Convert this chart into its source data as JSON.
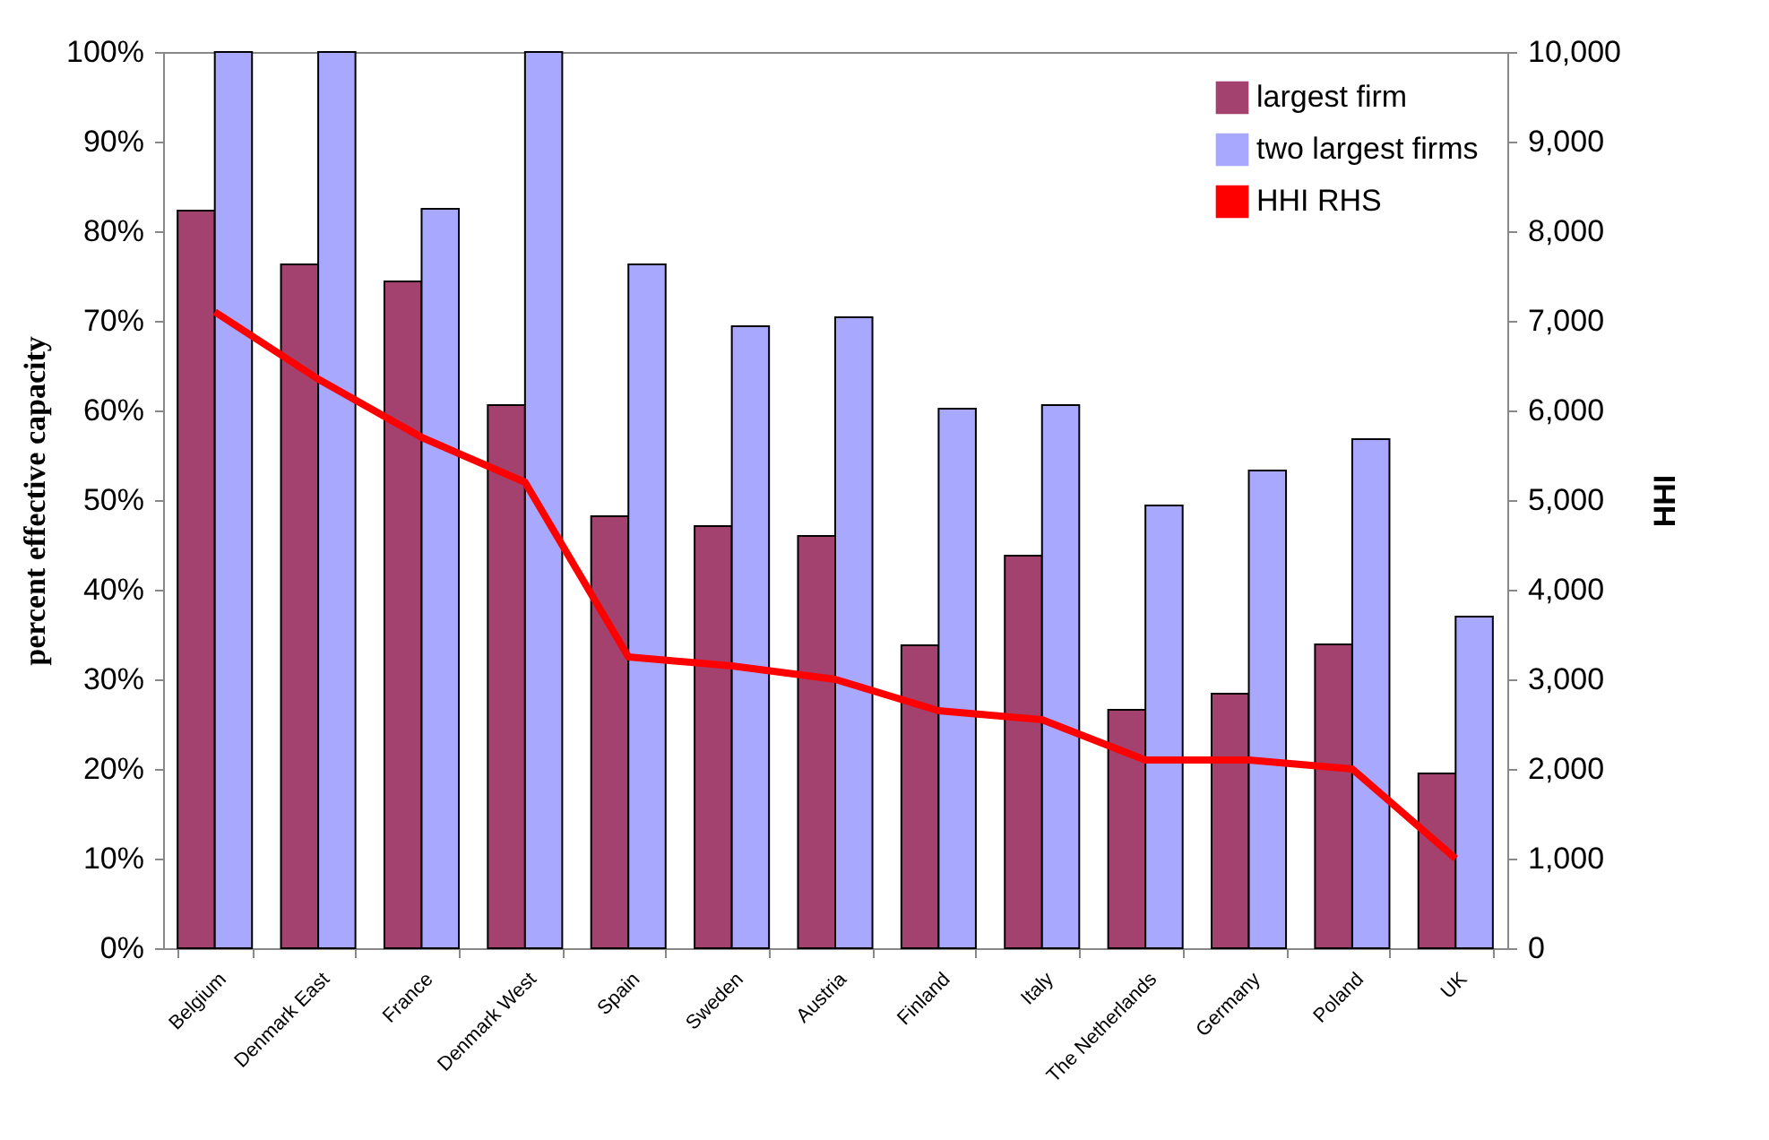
{
  "chart_data": {
    "type": "bar",
    "ylabel": "percent effective capacity",
    "y2label": "HHI",
    "categories": [
      "Belgium",
      "Denmark East",
      "France",
      "Denmark West",
      "Spain",
      "Sweden",
      "Austria",
      "Finland",
      "Italy",
      "The Netherlands",
      "Germany",
      "Poland",
      "UK"
    ],
    "series": [
      {
        "name": "largest firm",
        "color": "#a3426f",
        "values": [
          82.3,
          76.3,
          74.4,
          60.6,
          48.2,
          47.1,
          46.0,
          33.8,
          43.8,
          26.6,
          28.4,
          33.9,
          19.5
        ]
      },
      {
        "name": "two largest firms",
        "color": "#a8a8ff",
        "values": [
          100,
          100,
          82.5,
          100,
          76.3,
          69.4,
          70.4,
          60.2,
          60.6,
          49.4,
          53.3,
          56.8,
          37.0
        ]
      },
      {
        "name": "HHI RHS",
        "type": "line",
        "axis": "y2",
        "color": "#ff0000",
        "values": [
          7100,
          6350,
          5700,
          5200,
          3250,
          3150,
          3000,
          2650,
          2550,
          2100,
          2100,
          2000,
          1000
        ]
      }
    ],
    "ylim": [
      0,
      100
    ],
    "yticks": [
      {
        "value": 0,
        "label": "0%"
      },
      {
        "value": 10,
        "label": "10%"
      },
      {
        "value": 20,
        "label": "20%"
      },
      {
        "value": 30,
        "label": "30%"
      },
      {
        "value": 40,
        "label": "40%"
      },
      {
        "value": 50,
        "label": "50%"
      },
      {
        "value": 60,
        "label": "60%"
      },
      {
        "value": 70,
        "label": "70%"
      },
      {
        "value": 80,
        "label": "80%"
      },
      {
        "value": 90,
        "label": "90%"
      },
      {
        "value": 100,
        "label": "100%"
      }
    ],
    "y2lim": [
      0,
      10000
    ],
    "y2ticks": [
      0,
      {
        "value": 1000,
        "label": "1,000"
      },
      {
        "value": 2000,
        "label": "2,000"
      },
      {
        "value": 3000,
        "label": "3,000"
      },
      {
        "value": 4000,
        "label": "4,000"
      },
      {
        "value": 5000,
        "label": "5,000"
      },
      {
        "value": 6000,
        "label": "6,000"
      },
      {
        "value": 7000,
        "label": "7,000"
      },
      {
        "value": 8000,
        "label": "8,000"
      },
      {
        "value": 9000,
        "label": "9,000"
      },
      {
        "value": 10000,
        "label": "10,000"
      }
    ],
    "grid": false,
    "legend": "top right"
  }
}
